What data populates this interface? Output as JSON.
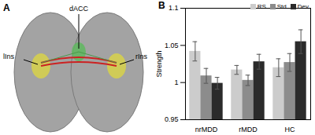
{
  "diagram": {
    "label": "A",
    "regions": [
      "dACC",
      "lIns",
      "rIns"
    ]
  },
  "chart_data": {
    "type": "bar",
    "title": "B",
    "y_label": "Strength",
    "categories": [
      "nrMDD",
      "rMDD",
      "HC"
    ],
    "series": [
      {
        "name": "RS",
        "color": "#cccccc",
        "values": [
          1.042,
          1.017,
          1.02
        ],
        "errors": [
          0.013,
          0.006,
          0.012
        ]
      },
      {
        "name": "Std",
        "color": "#8c8c8c",
        "values": [
          1.009,
          1.003,
          1.027
        ],
        "errors": [
          0.01,
          0.007,
          0.012
        ]
      },
      {
        "name": "Dev",
        "color": "#2b2b2b",
        "values": [
          0.999,
          1.028,
          1.055
        ],
        "errors": [
          0.008,
          0.01,
          0.016
        ]
      }
    ],
    "ylim": [
      0.95,
      1.1
    ],
    "yticks": [
      0.95,
      1,
      1.05,
      1.1
    ],
    "legend": "upper right",
    "grid": false
  }
}
